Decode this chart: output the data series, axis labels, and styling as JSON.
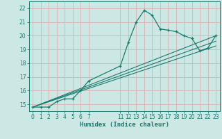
{
  "xlabel": "Humidex (Indice chaleur)",
  "bg_color": "#cce8e4",
  "grid_color": "#d8b8b8",
  "line_color": "#1a7a6e",
  "xlim": [
    -0.5,
    23.5
  ],
  "ylim": [
    14.5,
    22.5
  ],
  "xticks": [
    0,
    1,
    2,
    3,
    4,
    5,
    6,
    7,
    11,
    12,
    13,
    14,
    15,
    16,
    17,
    18,
    19,
    20,
    21,
    22,
    23
  ],
  "yticks": [
    15,
    16,
    17,
    18,
    19,
    20,
    21,
    22
  ],
  "series1_x": [
    0,
    1,
    2,
    3,
    4,
    5,
    6,
    7,
    11,
    12,
    13,
    14,
    15,
    16,
    17,
    18,
    19,
    20,
    21,
    22,
    23
  ],
  "series1_y": [
    14.8,
    14.8,
    14.8,
    15.2,
    15.4,
    15.4,
    16.0,
    16.7,
    17.8,
    19.5,
    21.0,
    21.85,
    21.5,
    20.5,
    20.4,
    20.3,
    20.0,
    19.8,
    18.9,
    19.1,
    20.0
  ],
  "series2_x": [
    0,
    23
  ],
  "series2_y": [
    14.8,
    20.0
  ],
  "series3_x": [
    0,
    23
  ],
  "series3_y": [
    14.8,
    19.6
  ],
  "series4_x": [
    0,
    23
  ],
  "series4_y": [
    14.8,
    19.25
  ]
}
